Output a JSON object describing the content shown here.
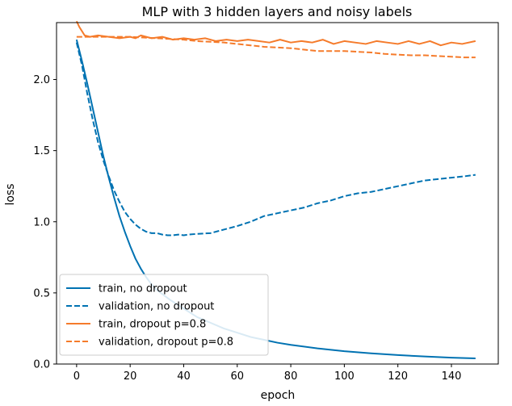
{
  "chart_data": {
    "type": "line",
    "title": "MLP with 3 hidden layers and noisy labels",
    "xlabel": "epoch",
    "ylabel": "loss",
    "xlim": [
      -7.5,
      157.5
    ],
    "ylim": [
      0.0,
      2.4
    ],
    "xticks": [
      0,
      20,
      40,
      60,
      80,
      100,
      120,
      140
    ],
    "yticks": [
      0.0,
      0.5,
      1.0,
      1.5,
      2.0
    ],
    "legend_position": "lower-left",
    "grid": false,
    "series": [
      {
        "name": "train, no dropout",
        "color": "#0072b2",
        "style": "solid",
        "points": [
          [
            0,
            2.28
          ],
          [
            2,
            2.13
          ],
          [
            4,
            1.97
          ],
          [
            6,
            1.8
          ],
          [
            8,
            1.63
          ],
          [
            10,
            1.46
          ],
          [
            12,
            1.31
          ],
          [
            14,
            1.17
          ],
          [
            16,
            1.04
          ],
          [
            18,
            0.93
          ],
          [
            20,
            0.83
          ],
          [
            22,
            0.74
          ],
          [
            24,
            0.67
          ],
          [
            26,
            0.61
          ],
          [
            28,
            0.56
          ],
          [
            30,
            0.52
          ],
          [
            35,
            0.45
          ],
          [
            40,
            0.39
          ],
          [
            45,
            0.33
          ],
          [
            50,
            0.29
          ],
          [
            55,
            0.25
          ],
          [
            60,
            0.22
          ],
          [
            65,
            0.19
          ],
          [
            70,
            0.17
          ],
          [
            75,
            0.15
          ],
          [
            80,
            0.135
          ],
          [
            90,
            0.11
          ],
          [
            100,
            0.09
          ],
          [
            110,
            0.075
          ],
          [
            120,
            0.063
          ],
          [
            130,
            0.053
          ],
          [
            140,
            0.045
          ],
          [
            149,
            0.04
          ]
        ]
      },
      {
        "name": "validation, no dropout",
        "color": "#0072b2",
        "style": "dashed",
        "points": [
          [
            0,
            2.26
          ],
          [
            2,
            2.1
          ],
          [
            4,
            1.9
          ],
          [
            6,
            1.72
          ],
          [
            8,
            1.56
          ],
          [
            10,
            1.43
          ],
          [
            12,
            1.32
          ],
          [
            14,
            1.22
          ],
          [
            16,
            1.14
          ],
          [
            18,
            1.07
          ],
          [
            20,
            1.02
          ],
          [
            22,
            0.98
          ],
          [
            24,
            0.95
          ],
          [
            26,
            0.93
          ],
          [
            28,
            0.92
          ],
          [
            30,
            0.92
          ],
          [
            32,
            0.91
          ],
          [
            34,
            0.905
          ],
          [
            36,
            0.905
          ],
          [
            38,
            0.91
          ],
          [
            40,
            0.905
          ],
          [
            42,
            0.91
          ],
          [
            45,
            0.915
          ],
          [
            50,
            0.92
          ],
          [
            55,
            0.945
          ],
          [
            60,
            0.97
          ],
          [
            65,
            1.0
          ],
          [
            70,
            1.04
          ],
          [
            75,
            1.06
          ],
          [
            80,
            1.08
          ],
          [
            85,
            1.1
          ],
          [
            90,
            1.13
          ],
          [
            95,
            1.15
          ],
          [
            100,
            1.18
          ],
          [
            105,
            1.2
          ],
          [
            110,
            1.21
          ],
          [
            115,
            1.23
          ],
          [
            120,
            1.25
          ],
          [
            125,
            1.27
          ],
          [
            130,
            1.29
          ],
          [
            135,
            1.3
          ],
          [
            140,
            1.31
          ],
          [
            145,
            1.32
          ],
          [
            149,
            1.33
          ]
        ]
      },
      {
        "name": "train, dropout p=0.8",
        "color": "#f57b2b",
        "style": "solid",
        "points": [
          [
            0,
            2.41
          ],
          [
            1,
            2.37
          ],
          [
            2,
            2.34
          ],
          [
            3,
            2.31
          ],
          [
            5,
            2.3
          ],
          [
            8,
            2.31
          ],
          [
            12,
            2.3
          ],
          [
            16,
            2.29
          ],
          [
            20,
            2.3
          ],
          [
            22,
            2.29
          ],
          [
            24,
            2.31
          ],
          [
            28,
            2.29
          ],
          [
            32,
            2.3
          ],
          [
            36,
            2.28
          ],
          [
            40,
            2.29
          ],
          [
            44,
            2.28
          ],
          [
            48,
            2.29
          ],
          [
            52,
            2.27
          ],
          [
            56,
            2.28
          ],
          [
            60,
            2.27
          ],
          [
            64,
            2.28
          ],
          [
            68,
            2.27
          ],
          [
            72,
            2.26
          ],
          [
            76,
            2.28
          ],
          [
            80,
            2.26
          ],
          [
            84,
            2.27
          ],
          [
            88,
            2.26
          ],
          [
            92,
            2.28
          ],
          [
            96,
            2.25
          ],
          [
            100,
            2.27
          ],
          [
            104,
            2.26
          ],
          [
            108,
            2.25
          ],
          [
            112,
            2.27
          ],
          [
            116,
            2.26
          ],
          [
            120,
            2.25
          ],
          [
            124,
            2.27
          ],
          [
            128,
            2.25
          ],
          [
            132,
            2.27
          ],
          [
            136,
            2.24
          ],
          [
            140,
            2.26
          ],
          [
            144,
            2.25
          ],
          [
            149,
            2.27
          ]
        ]
      },
      {
        "name": "validation, dropout p=0.8",
        "color": "#f57b2b",
        "style": "dashed",
        "points": [
          [
            0,
            2.3
          ],
          [
            5,
            2.3
          ],
          [
            10,
            2.3
          ],
          [
            15,
            2.3
          ],
          [
            20,
            2.3
          ],
          [
            25,
            2.295
          ],
          [
            30,
            2.29
          ],
          [
            35,
            2.285
          ],
          [
            40,
            2.28
          ],
          [
            45,
            2.27
          ],
          [
            50,
            2.265
          ],
          [
            55,
            2.26
          ],
          [
            60,
            2.25
          ],
          [
            65,
            2.24
          ],
          [
            70,
            2.23
          ],
          [
            75,
            2.225
          ],
          [
            80,
            2.22
          ],
          [
            85,
            2.21
          ],
          [
            90,
            2.2
          ],
          [
            95,
            2.2
          ],
          [
            100,
            2.2
          ],
          [
            105,
            2.195
          ],
          [
            110,
            2.19
          ],
          [
            115,
            2.18
          ],
          [
            120,
            2.175
          ],
          [
            125,
            2.17
          ],
          [
            130,
            2.17
          ],
          [
            135,
            2.165
          ],
          [
            140,
            2.16
          ],
          [
            145,
            2.155
          ],
          [
            149,
            2.155
          ]
        ]
      }
    ]
  }
}
